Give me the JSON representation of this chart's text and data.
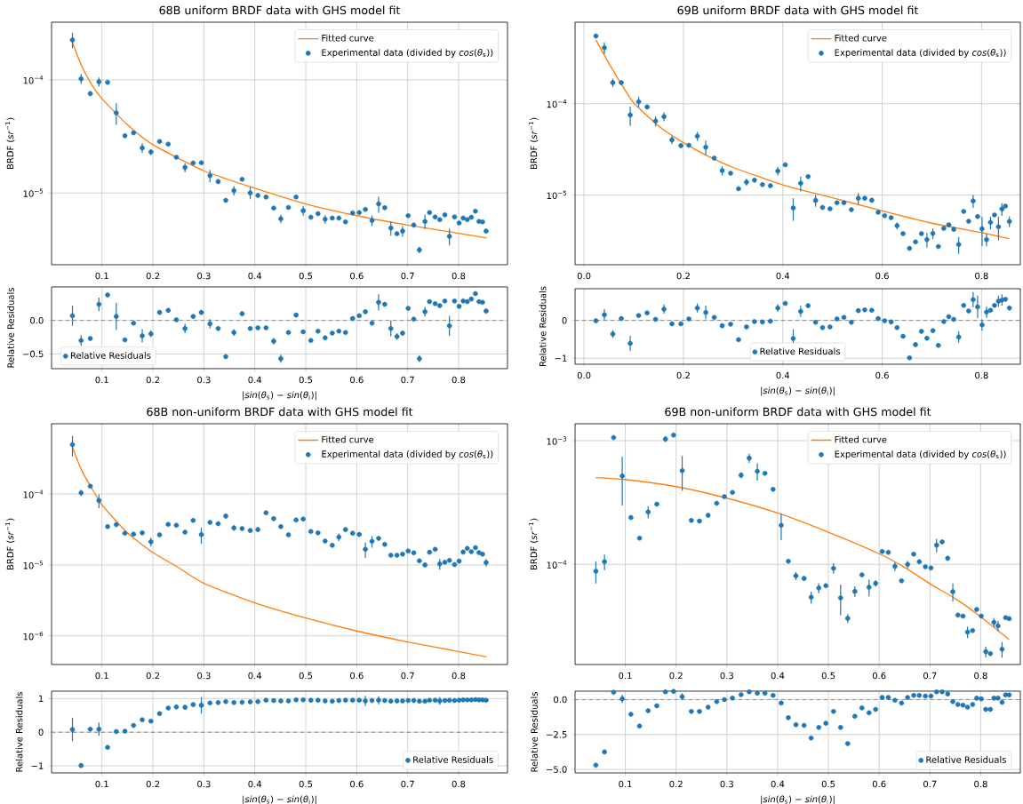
{
  "chart_data": [
    {
      "type": "scatter",
      "title": "68B uniform BRDF data with GHS model fit",
      "ylabel": "BRDF (*sr*$^{−1}$)",
      "log": "y",
      "grid": true,
      "legend": "top right",
      "marker": "circle",
      "xlim": [
        0.001,
        0.896
      ],
      "ylim": [
        2.32e-06,
        0.000323
      ],
      "xticks": [
        0.1,
        0.2,
        0.3,
        0.4,
        0.5,
        0.6,
        0.7,
        0.8
      ],
      "yticks": [
        {
          "value": 1e-05,
          "label": "10$^{−5}$"
        },
        {
          "value": 0.0001,
          "label": "10$^{−4}$"
        }
      ],
      "series": [
        {
          "name": "Fitted curve",
          "type": "line",
          "marker": "none",
          "color": "#ff7f0e",
          "x": [
            0.042,
            0.06,
            0.08,
            0.1,
            0.15,
            0.2,
            0.3,
            0.4,
            0.5,
            0.6,
            0.7,
            0.8,
            0.855
          ],
          "values": [
            0.000214,
            0.000133,
            9e-05,
            6.8e-05,
            4e-05,
            2.67e-05,
            1.57e-05,
            1.1e-05,
            8e-06,
            6.3e-06,
            5.2e-06,
            4.4e-06,
            4e-06
          ]
        },
        {
          "name": "Experimental data (divided by *cos*(*θ*$_{s}$))",
          "type": "scatter",
          "color": "#1f77b4",
          "x": [
            0.042,
            0.059,
            0.077,
            0.094,
            0.111,
            0.128,
            0.145,
            0.162,
            0.179,
            0.196,
            0.213,
            0.23,
            0.246,
            0.263,
            0.279,
            0.295,
            0.312,
            0.328,
            0.343,
            0.359,
            0.375,
            0.391,
            0.406,
            0.422,
            0.437,
            0.451,
            0.466,
            0.481,
            0.495,
            0.51,
            0.524,
            0.538,
            0.552,
            0.565,
            0.578,
            0.592,
            0.605,
            0.617,
            0.63,
            0.643,
            0.655,
            0.667,
            0.679,
            0.69,
            0.701,
            0.712,
            0.723,
            0.734,
            0.743,
            0.754,
            0.763,
            0.773,
            0.782,
            0.792,
            0.801,
            0.809,
            0.817,
            0.825,
            0.833,
            0.84,
            0.847,
            0.854
          ],
          "values": [
            0.000225,
            0.000102,
            7.55e-05,
            9.6e-05,
            9.5e-05,
            5.1e-05,
            3.2e-05,
            3.4e-05,
            2.5e-05,
            2.3e-05,
            2.85e-05,
            2.7e-05,
            2.07e-05,
            1.68e-05,
            1.84e-05,
            1.85e-05,
            1.42e-05,
            1.26e-05,
            8.6e-06,
            1.05e-05,
            1.32e-05,
            1e-05,
            9.5e-06,
            9.2e-06,
            7.35e-06,
            5.9e-06,
            7.45e-06,
            9.2e-06,
            6.97e-06,
            6.1e-06,
            6.56e-06,
            5.85e-06,
            6e-06,
            6e-06,
            5.55e-06,
            6.65e-06,
            6.7e-06,
            7.16e-06,
            5.7e-06,
            8e-06,
            7.4e-06,
            4.9e-06,
            4.36e-06,
            4.6e-06,
            6.3e-06,
            5.2e-06,
            3.14e-06,
            5.6e-06,
            6.7e-06,
            6.14e-06,
            5.8e-06,
            6.4e-06,
            4.13e-06,
            6.14e-06,
            5.43e-06,
            6e-06,
            5.8e-06,
            6.1e-06,
            6.9e-06,
            5.6e-06,
            5.55e-06,
            4.6e-06
          ],
          "errors": [
            3.5e-05,
            1e-05,
            null,
            9e-06,
            null,
            1.1e-05,
            null,
            null,
            2.5e-06,
            1.5e-06,
            null,
            null,
            null,
            1.5e-06,
            null,
            null,
            1.8e-06,
            null,
            null,
            1e-06,
            null,
            1.2e-06,
            null,
            null,
            null,
            5e-07,
            null,
            null,
            7e-07,
            null,
            null,
            5e-07,
            null,
            null,
            null,
            null,
            null,
            null,
            6e-07,
            1.3e-06,
            null,
            7e-07,
            null,
            5e-07,
            null,
            null,
            2e-07,
            8e-07,
            null,
            null,
            null,
            null,
            7e-07,
            null,
            null,
            null,
            null,
            null,
            null,
            null,
            null,
            null
          ]
        }
      ]
    },
    {
      "type": "scatter",
      "title": "69B uniform BRDF data with GHS model fit",
      "ylabel": "BRDF (*sr*$^{−1}$)",
      "log": "y",
      "grid": true,
      "legend": "top right",
      "marker": "circle",
      "xlim": [
        -0.018,
        0.878
      ],
      "ylim": [
        1.72e-06,
        0.00078
      ],
      "xticks": [
        {
          "value": 0,
          "label": "0.0"
        },
        0.2,
        0.4,
        0.6,
        0.8
      ],
      "yticks": [
        {
          "value": 1e-05,
          "label": "10$^{−5}$"
        },
        {
          "value": 0.0001,
          "label": "10$^{−4}$"
        }
      ],
      "series": [
        {
          "name": "Fitted curve",
          "type": "line",
          "marker": "none",
          "color": "#ff7f0e",
          "x": [
            0.024,
            0.05,
            0.075,
            0.1,
            0.15,
            0.2,
            0.25,
            0.3,
            0.4,
            0.5,
            0.6,
            0.7,
            0.8,
            0.856
          ],
          "values": [
            0.0005,
            0.000277,
            0.000164,
            0.000102,
            5.7e-05,
            3.73e-05,
            2.65e-05,
            2e-05,
            1.29e-05,
            9.3e-06,
            6.7e-06,
            4.9e-06,
            3.86e-06,
            3.32e-06
          ]
        },
        {
          "name": "Experimental data (divided by *cos*(*θ*$_{s}$))",
          "type": "scatter",
          "color": "#1f77b4",
          "x": [
            0.024,
            0.041,
            0.058,
            0.075,
            0.093,
            0.11,
            0.127,
            0.144,
            0.161,
            0.177,
            0.195,
            0.211,
            0.228,
            0.245,
            0.262,
            0.278,
            0.295,
            0.311,
            0.327,
            0.343,
            0.359,
            0.375,
            0.39,
            0.405,
            0.421,
            0.436,
            0.451,
            0.466,
            0.48,
            0.495,
            0.509,
            0.523,
            0.538,
            0.552,
            0.565,
            0.579,
            0.592,
            0.605,
            0.618,
            0.63,
            0.642,
            0.655,
            0.667,
            0.679,
            0.69,
            0.702,
            0.713,
            0.724,
            0.734,
            0.744,
            0.754,
            0.764,
            0.774,
            0.783,
            0.792,
            0.801,
            0.81,
            0.818,
            0.826,
            0.834,
            0.841,
            0.848,
            0.856
          ],
          "values": [
            0.00055,
            0.00041,
            0.00017,
            0.00017,
            7.5e-05,
            0.000105,
            9.2e-05,
            6.45e-05,
            7.2e-05,
            4e-05,
            3.47e-05,
            3.5e-05,
            4.4e-05,
            3.33e-05,
            2.53e-05,
            1.85e-05,
            1.73e-05,
            1.17e-05,
            1.38e-05,
            1.45e-05,
            1.3e-05,
            1.26e-05,
            1.83e-05,
            2.14e-05,
            7.2e-06,
            1.34e-05,
            1.59e-05,
            8.7e-06,
            7.3e-06,
            7.06e-06,
            8.2e-06,
            8.2e-06,
            6.9e-06,
            9.2e-06,
            9.2e-06,
            8.75e-06,
            6.45e-06,
            5.93e-06,
            5.65e-06,
            4.6e-06,
            3.77e-06,
            2.6e-06,
            3.06e-06,
            3.77e-06,
            3.24e-06,
            3.79e-06,
            2.72e-06,
            4.3e-06,
            4.7e-06,
            4.2e-06,
            2.86e-06,
            6.6e-06,
            5.15e-06,
            8.6e-06,
            5.8e-06,
            4.25e-06,
            3.24e-06,
            5e-06,
            6.04e-06,
            4.48e-06,
            7e-06,
            7.55e-06,
            5.12e-06
          ],
          "errors": [
            3e-05,
            6e-05,
            1.8e-05,
            null,
            1.8e-05,
            1.4e-05,
            null,
            8e-06,
            8e-06,
            4e-06,
            null,
            null,
            5e-06,
            6e-06,
            null,
            2.2e-06,
            null,
            null,
            1.2e-06,
            null,
            null,
            null,
            2e-06,
            null,
            2e-06,
            2.5e-06,
            null,
            1.3e-06,
            null,
            null,
            null,
            null,
            null,
            1.3e-06,
            null,
            null,
            null,
            null,
            null,
            4e-07,
            null,
            null,
            null,
            null,
            6e-07,
            5e-07,
            null,
            null,
            null,
            null,
            6e-07,
            null,
            null,
            1.4e-06,
            null,
            1.5e-06,
            5e-07,
            8e-07,
            null,
            1.3e-06,
            1.1e-06,
            null,
            7e-07
          ]
        }
      ]
    },
    {
      "type": "scatter",
      "xlabel": "|*sin*(*θ*$_{s}$) − *sin*(*θ*$_{i}$)|",
      "ylabel": "Relative Residuals",
      "grid": true,
      "legend": "bottom left",
      "marker": "circle",
      "xlim": [
        0.001,
        0.896
      ],
      "ylim": [
        -0.72,
        0.5
      ],
      "xticks": [
        0.1,
        0.2,
        0.3,
        0.4,
        0.5,
        0.6,
        0.7,
        0.8
      ],
      "yticks": [
        {
          "value": -0.5,
          "label": "−0.5"
        },
        {
          "value": 0,
          "label": "0.0"
        }
      ],
      "ref_lines": [
        {
          "axis": "y",
          "value": 0,
          "color": "#808080",
          "line_style": "dashed"
        }
      ],
      "series": [
        {
          "name": "Relative Residuals",
          "type": "scatter",
          "color": "#1f77b4",
          "x": [
            0.042,
            0.059,
            0.077,
            0.094,
            0.111,
            0.128,
            0.145,
            0.162,
            0.179,
            0.196,
            0.213,
            0.23,
            0.246,
            0.263,
            0.279,
            0.295,
            0.312,
            0.328,
            0.343,
            0.359,
            0.375,
            0.391,
            0.406,
            0.422,
            0.437,
            0.451,
            0.466,
            0.481,
            0.495,
            0.51,
            0.524,
            0.538,
            0.552,
            0.565,
            0.578,
            0.592,
            0.605,
            0.617,
            0.63,
            0.643,
            0.655,
            0.667,
            0.679,
            0.69,
            0.701,
            0.712,
            0.723,
            0.734,
            0.743,
            0.754,
            0.763,
            0.773,
            0.782,
            0.792,
            0.801,
            0.809,
            0.817,
            0.825,
            0.833,
            0.84,
            0.847,
            0.854
          ],
          "values": [
            0.07,
            -0.3,
            -0.27,
            0.24,
            0.38,
            0.06,
            -0.29,
            -0.04,
            -0.23,
            -0.2,
            0.12,
            0.15,
            0.01,
            -0.12,
            0.06,
            0.12,
            -0.05,
            -0.12,
            -0.54,
            -0.18,
            0.1,
            -0.12,
            -0.11,
            -0.11,
            -0.31,
            -0.57,
            -0.18,
            0.08,
            -0.17,
            -0.3,
            -0.16,
            -0.26,
            -0.19,
            -0.16,
            -0.18,
            0.03,
            0.07,
            0.13,
            -0.04,
            0.27,
            0.24,
            -0.12,
            -0.24,
            -0.19,
            0.18,
            0.02,
            -0.57,
            0.13,
            0.28,
            0.25,
            0.22,
            0.29,
            -0.08,
            0.29,
            0.21,
            0.29,
            0.28,
            0.32,
            0.4,
            0.28,
            0.27,
            0.14
          ],
          "errors": [
            0.15,
            0.08,
            null,
            0.1,
            null,
            0.2,
            null,
            null,
            0.1,
            0.05,
            null,
            null,
            null,
            0.07,
            null,
            null,
            0.07,
            null,
            null,
            0.05,
            null,
            null,
            null,
            null,
            0.05,
            0.06,
            null,
            null,
            null,
            null,
            null,
            null,
            null,
            null,
            null,
            null,
            null,
            null,
            null,
            0.12,
            null,
            0.12,
            0.05,
            0.04,
            null,
            null,
            0.05,
            0.07,
            null,
            null,
            null,
            null,
            0.15,
            null,
            null,
            null,
            null,
            null,
            null,
            null,
            null,
            null
          ]
        }
      ]
    },
    {
      "type": "scatter",
      "xlabel": "|*sin*(*θ*$_{s}$) − *sin*(*θ*$_{i}$)|",
      "ylabel": "Relative Residuals",
      "grid": true,
      "legend": "bottom",
      "marker": "circle",
      "xlim": [
        -0.018,
        0.878
      ],
      "ylim": [
        -1.16,
        0.84
      ],
      "xticks": [
        {
          "value": 0,
          "label": "0.0"
        },
        0.2,
        0.4,
        0.6,
        0.8
      ],
      "yticks": [
        {
          "value": -1,
          "label": "−1"
        },
        0
      ],
      "ref_lines": [
        {
          "axis": "y",
          "value": 0,
          "color": "#808080",
          "line_style": "dashed"
        }
      ],
      "series": [
        {
          "name": "Relative Residuals",
          "type": "scatter",
          "color": "#1f77b4",
          "x": [
            0.024,
            0.041,
            0.058,
            0.075,
            0.093,
            0.11,
            0.127,
            0.144,
            0.161,
            0.177,
            0.195,
            0.211,
            0.228,
            0.245,
            0.262,
            0.278,
            0.295,
            0.311,
            0.327,
            0.343,
            0.359,
            0.375,
            0.39,
            0.405,
            0.421,
            0.436,
            0.451,
            0.466,
            0.48,
            0.495,
            0.509,
            0.523,
            0.538,
            0.552,
            0.565,
            0.579,
            0.592,
            0.605,
            0.618,
            0.63,
            0.642,
            0.655,
            0.667,
            0.679,
            0.69,
            0.702,
            0.713,
            0.724,
            0.734,
            0.744,
            0.754,
            0.764,
            0.774,
            0.783,
            0.792,
            0.801,
            0.81,
            0.818,
            0.826,
            0.834,
            0.841,
            0.848,
            0.856
          ],
          "values": [
            -0.01,
            0.15,
            -0.36,
            0.05,
            -0.61,
            0.13,
            0.2,
            0.03,
            0.3,
            -0.09,
            -0.09,
            0.04,
            0.33,
            0.21,
            0.08,
            -0.14,
            -0.1,
            -0.51,
            -0.17,
            -0.03,
            -0.04,
            -0.02,
            0.33,
            0.45,
            -0.48,
            0.24,
            0.39,
            -0.05,
            -0.19,
            -0.17,
            0.04,
            0.08,
            -0.05,
            0.26,
            0.28,
            0.27,
            0.05,
            -0.01,
            -0.04,
            -0.19,
            -0.42,
            -0.99,
            -0.64,
            -0.29,
            -0.47,
            -0.27,
            -0.66,
            -0.03,
            0.1,
            0.03,
            -0.44,
            0.4,
            0.25,
            0.55,
            0.36,
            -0.12,
            0.22,
            0.27,
            0.4,
            0.51,
            0.54,
            0.56,
            0.33
          ],
          "errors": [
            null,
            0.15,
            0.1,
            null,
            0.2,
            null,
            null,
            null,
            0.12,
            null,
            null,
            null,
            0.12,
            0.18,
            null,
            null,
            null,
            null,
            null,
            null,
            null,
            null,
            0.1,
            null,
            0.25,
            0.15,
            null,
            null,
            null,
            null,
            null,
            null,
            null,
            null,
            null,
            null,
            null,
            null,
            null,
            null,
            null,
            null,
            null,
            null,
            null,
            null,
            null,
            null,
            null,
            null,
            0.15,
            null,
            null,
            0.2,
            0.3,
            0.15,
            0.15,
            null,
            null,
            0.15,
            0.15,
            null,
            null
          ]
        }
      ]
    },
    {
      "type": "scatter",
      "title": "68B non-uniform BRDF data with GHS model fit",
      "ylabel": "BRDF (*sr*$^{−1}$)",
      "log": "y",
      "grid": true,
      "legend": "top right",
      "marker": "circle",
      "xlim": [
        0.001,
        0.896
      ],
      "ylim": [
        3.94e-07,
        0.00098
      ],
      "xticks": [
        0.1,
        0.2,
        0.3,
        0.4,
        0.5,
        0.6,
        0.7,
        0.8
      ],
      "yticks": [
        {
          "value": 1e-06,
          "label": "10$^{−6}$"
        },
        {
          "value": 1e-05,
          "label": "10$^{−5}$"
        },
        {
          "value": 0.0001,
          "label": "10$^{−4}$"
        }
      ],
      "series": [
        {
          "name": "Fitted curve",
          "type": "line",
          "marker": "none",
          "color": "#ff7f0e",
          "x": [
            0.042,
            0.06,
            0.08,
            0.1,
            0.15,
            0.2,
            0.25,
            0.3,
            0.4,
            0.5,
            0.6,
            0.7,
            0.8,
            0.855
          ],
          "values": [
            0.000456,
            0.000216,
            0.00012,
            7.03e-05,
            2.83e-05,
            1.49e-05,
            9.2e-06,
            5.5e-06,
            2.91e-06,
            1.78e-06,
            1.17e-06,
            8.2e-07,
            6e-07,
            5.05e-07
          ]
        },
        {
          "name": "Experimental data (divided by *cos*(*θ*$_{s}$))",
          "type": "scatter",
          "color": "#1f77b4",
          "x": [
            0.042,
            0.059,
            0.077,
            0.094,
            0.111,
            0.128,
            0.145,
            0.162,
            0.179,
            0.196,
            0.213,
            0.23,
            0.246,
            0.263,
            0.279,
            0.295,
            0.312,
            0.328,
            0.343,
            0.359,
            0.375,
            0.391,
            0.406,
            0.422,
            0.437,
            0.451,
            0.466,
            0.481,
            0.495,
            0.51,
            0.524,
            0.538,
            0.552,
            0.565,
            0.578,
            0.592,
            0.605,
            0.617,
            0.63,
            0.643,
            0.655,
            0.667,
            0.679,
            0.69,
            0.701,
            0.712,
            0.723,
            0.734,
            0.743,
            0.754,
            0.763,
            0.773,
            0.782,
            0.792,
            0.801,
            0.809,
            0.817,
            0.825,
            0.833,
            0.84,
            0.847,
            0.854
          ],
          "values": [
            0.000497,
            0.000104,
            0.000129,
            8.1e-05,
            3.47e-05,
            3.7e-05,
            2.8e-05,
            2.72e-05,
            2.83e-05,
            2.12e-05,
            2.66e-05,
            3.74e-05,
            3.62e-05,
            2.9e-05,
            4.26e-05,
            2.68e-05,
            3.99e-05,
            3.82e-05,
            4.89e-05,
            3.33e-05,
            3.26e-05,
            3.06e-05,
            3.15e-05,
            5.44e-05,
            4.49e-05,
            3.47e-05,
            2.66e-05,
            4.3e-05,
            4.44e-05,
            2.96e-05,
            2.83e-05,
            2.17e-05,
            1.89e-05,
            2.47e-05,
            3.15e-05,
            2.8e-05,
            2.69e-05,
            1.66e-05,
            2.15e-05,
            2.37e-05,
            1.95e-05,
            1.37e-05,
            1.37e-05,
            1.42e-05,
            1.57e-05,
            1.48e-05,
            1.14e-05,
            1e-05,
            1.51e-05,
            1.66e-05,
            1.03e-05,
            1.09e-05,
            1.16e-05,
            1.01e-05,
            1.13e-05,
            1.52e-05,
            1.71e-05,
            1.54e-05,
            1.75e-05,
            1.49e-05,
            1.42e-05,
            1.08e-05
          ],
          "errors": [
            0.00016,
            1e-05,
            null,
            1.8e-05,
            null,
            null,
            null,
            null,
            null,
            3e-06,
            null,
            null,
            null,
            null,
            null,
            7e-06,
            null,
            null,
            4e-06,
            3e-06,
            null,
            null,
            null,
            null,
            null,
            null,
            null,
            null,
            null,
            null,
            null,
            null,
            null,
            3e-06,
            null,
            null,
            null,
            4e-06,
            4e-06,
            null,
            null,
            null,
            null,
            null,
            null,
            null,
            null,
            null,
            null,
            null,
            1.8e-06,
            null,
            null,
            null,
            null,
            null,
            null,
            null,
            null,
            null,
            null,
            1.3e-06
          ]
        }
      ]
    },
    {
      "type": "scatter",
      "title": "69B non-uniform BRDF data with GHS model fit",
      "ylabel": "BRDF (*sr*$^{−1}$)",
      "log": "y",
      "grid": true,
      "legend": "top right",
      "marker": "circle",
      "xlim": [
        0.001,
        0.878
      ],
      "ylim": [
        1.55e-05,
        0.00137
      ],
      "xticks": [
        0.1,
        0.2,
        0.3,
        0.4,
        0.5,
        0.6,
        0.7,
        0.8
      ],
      "yticks": [
        {
          "value": 0.0001,
          "label": "10$^{−4}$"
        },
        {
          "value": 0.001,
          "label": "10$^{−3}$"
        }
      ],
      "series": [
        {
          "name": "Fitted curve",
          "type": "line",
          "marker": "none",
          "color": "#ff7f0e",
          "x": [
            0.042,
            0.1,
            0.2,
            0.3,
            0.4,
            0.5,
            0.6,
            0.65,
            0.7,
            0.75,
            0.8,
            0.856
          ],
          "values": [
            0.000503,
            0.000485,
            0.000425,
            0.000343,
            0.00026,
            0.000182,
            0.000122,
            9.46e-05,
            6.97e-05,
            5.28e-05,
            3.77e-05,
            2.46e-05
          ]
        },
        {
          "name": "Experimental data (divided by *cos*(*θ*$_{s}$))",
          "type": "scatter",
          "color": "#1f77b4",
          "x": [
            0.042,
            0.059,
            0.077,
            0.094,
            0.111,
            0.128,
            0.145,
            0.162,
            0.179,
            0.195,
            0.212,
            0.23,
            0.246,
            0.263,
            0.28,
            0.295,
            0.311,
            0.328,
            0.344,
            0.36,
            0.375,
            0.391,
            0.407,
            0.421,
            0.436,
            0.452,
            0.466,
            0.481,
            0.495,
            0.51,
            0.524,
            0.538,
            0.552,
            0.566,
            0.58,
            0.593,
            0.606,
            0.618,
            0.631,
            0.644,
            0.656,
            0.668,
            0.679,
            0.691,
            0.702,
            0.713,
            0.724,
            0.735,
            0.745,
            0.755,
            0.765,
            0.774,
            0.784,
            0.792,
            0.801,
            0.81,
            0.819,
            0.826,
            0.834,
            0.842,
            0.849,
            0.856
          ],
          "values": [
            8.8e-05,
            0.000105,
            0.00106,
            0.000519,
            0.000239,
            0.000163,
            0.000265,
            0.000307,
            0.00103,
            0.00111,
            0.000573,
            0.000227,
            0.000224,
            0.000249,
            0.000312,
            0.000353,
            0.000382,
            0.000526,
            0.000723,
            0.000566,
            0.000545,
            0.000404,
            0.000207,
            0.000106,
            8.07e-05,
            7.69e-05,
            5.42e-05,
            6.44e-05,
            6.72e-05,
            9.29e-05,
            5.36e-05,
            3.66e-05,
            6.05e-05,
            8.22e-05,
            6.52e-05,
            7.02e-05,
            0.000127,
            0.000125,
            9.64e-05,
            7.36e-05,
            0.0001,
            0.000121,
            0.000105,
            9.57e-05,
            9.35e-05,
            0.000143,
            0.000152,
            0.000112,
            6.01e-05,
            3.89e-05,
            3.82e-05,
            2.83e-05,
            2.92e-05,
            4.32e-05,
            3.82e-05,
            1.97e-05,
            1.9e-05,
            3.4e-05,
            3.18e-05,
            2.06e-05,
            3.71e-05,
            3.64e-05
          ],
          "errors": [
            1.8e-05,
            1.5e-05,
            null,
            0.00022,
            null,
            null,
            3e-05,
            null,
            6e-05,
            null,
            0.00018,
            null,
            null,
            null,
            null,
            null,
            null,
            3e-05,
            6e-05,
            9e-05,
            null,
            null,
            5e-05,
            null,
            6e-06,
            null,
            6e-06,
            6e-06,
            null,
            9e-06,
            1.5e-05,
            3e-06,
            6e-06,
            null,
            1e-05,
            4e-06,
            null,
            null,
            8e-06,
            null,
            7e-06,
            null,
            null,
            null,
            null,
            1.8e-05,
            null,
            null,
            1e-05,
            null,
            null,
            3e-06,
            null,
            null,
            null,
            2e-06,
            null,
            3e-06,
            3e-06,
            3e-06,
            null,
            null
          ]
        }
      ]
    },
    {
      "type": "scatter",
      "xlabel": "|*sin*(*θ*$_{s}$) − *sin*(*θ*$_{i}$)|",
      "ylabel": "Relative Residuals",
      "grid": true,
      "legend": "bottom right",
      "marker": "circle",
      "xlim": [
        0.001,
        0.896
      ],
      "ylim": [
        -1.21,
        1.22
      ],
      "xticks": [
        0.1,
        0.2,
        0.3,
        0.4,
        0.5,
        0.6,
        0.7,
        0.8
      ],
      "yticks": [
        {
          "value": -1,
          "label": "−1"
        },
        0,
        1
      ],
      "ref_lines": [
        {
          "axis": "y",
          "value": 0,
          "color": "#808080",
          "line_style": "dashed"
        }
      ],
      "series": [
        {
          "name": "Relative Residuals",
          "type": "scatter",
          "color": "#1f77b4",
          "x": [
            0.042,
            0.059,
            0.077,
            0.094,
            0.111,
            0.128,
            0.145,
            0.162,
            0.179,
            0.196,
            0.213,
            0.23,
            0.246,
            0.263,
            0.279,
            0.295,
            0.312,
            0.328,
            0.343,
            0.359,
            0.375,
            0.391,
            0.406,
            0.422,
            0.437,
            0.451,
            0.466,
            0.481,
            0.495,
            0.51,
            0.524,
            0.538,
            0.552,
            0.565,
            0.578,
            0.592,
            0.605,
            0.617,
            0.63,
            0.643,
            0.655,
            0.667,
            0.679,
            0.69,
            0.701,
            0.712,
            0.723,
            0.734,
            0.743,
            0.754,
            0.763,
            0.773,
            0.782,
            0.792,
            0.801,
            0.809,
            0.817,
            0.825,
            0.833,
            0.84,
            0.847,
            0.854
          ],
          "values": [
            0.08,
            -0.99,
            0.09,
            0.09,
            -0.45,
            0.02,
            0.03,
            0.2,
            0.37,
            0.33,
            0.55,
            0.72,
            0.75,
            0.74,
            0.82,
            0.8,
            0.87,
            0.88,
            0.91,
            0.88,
            0.89,
            0.9,
            0.91,
            0.95,
            0.94,
            0.93,
            0.93,
            0.96,
            0.96,
            0.95,
            0.95,
            0.93,
            0.92,
            0.94,
            0.95,
            0.95,
            0.95,
            0.93,
            0.94,
            0.95,
            0.94,
            0.92,
            0.93,
            0.93,
            0.94,
            0.94,
            0.92,
            0.92,
            0.95,
            0.95,
            0.93,
            0.94,
            0.95,
            0.94,
            0.95,
            0.96,
            0.96,
            0.96,
            0.97,
            0.96,
            0.96,
            0.95
          ],
          "errors": [
            0.35,
            0.07,
            null,
            0.2,
            null,
            null,
            null,
            null,
            null,
            null,
            null,
            null,
            null,
            null,
            null,
            0.25,
            null,
            null,
            null,
            null,
            null,
            null,
            null,
            null,
            null,
            null,
            null,
            null,
            null,
            null,
            null,
            null,
            null,
            null,
            null,
            null,
            null,
            0.15,
            null,
            0.12,
            null,
            null,
            null,
            null,
            null,
            null,
            null,
            null,
            null,
            null,
            0.12,
            null,
            null,
            null,
            null,
            null,
            null,
            null,
            null,
            null,
            null,
            null
          ]
        }
      ]
    },
    {
      "type": "scatter",
      "xlabel": "|*sin*(*θ*$_{s}$) − *sin*(*θ*$_{i}$)|",
      "ylabel": "Relative Residuals",
      "grid": true,
      "legend": "bottom right",
      "marker": "circle",
      "xlim": [
        0.001,
        0.878
      ],
      "ylim": [
        -5.25,
        0.6
      ],
      "xticks": [
        0.1,
        0.2,
        0.3,
        0.4,
        0.5,
        0.6,
        0.7,
        0.8
      ],
      "yticks": [
        {
          "value": -5,
          "label": "−5.0"
        },
        {
          "value": -2.5,
          "label": "−2.5"
        },
        {
          "value": 0,
          "label": "0.0"
        }
      ],
      "ref_lines": [
        {
          "axis": "y",
          "value": 0,
          "color": "#808080",
          "line_style": "dashed"
        }
      ],
      "series": [
        {
          "name": "Relative Residuals",
          "type": "scatter",
          "color": "#1f77b4",
          "x": [
            0.042,
            0.059,
            0.077,
            0.094,
            0.111,
            0.128,
            0.145,
            0.162,
            0.179,
            0.195,
            0.212,
            0.23,
            0.246,
            0.263,
            0.28,
            0.295,
            0.311,
            0.328,
            0.344,
            0.36,
            0.375,
            0.391,
            0.407,
            0.421,
            0.436,
            0.452,
            0.466,
            0.481,
            0.495,
            0.51,
            0.524,
            0.538,
            0.552,
            0.566,
            0.58,
            0.593,
            0.606,
            0.618,
            0.631,
            0.644,
            0.656,
            0.668,
            0.679,
            0.691,
            0.702,
            0.713,
            0.724,
            0.735,
            0.745,
            0.755,
            0.765,
            0.774,
            0.784,
            0.792,
            0.801,
            0.81,
            0.819,
            0.826,
            0.834,
            0.842,
            0.849,
            0.856
          ],
          "values": [
            -4.7,
            -3.75,
            0.52,
            0.05,
            -1.05,
            -1.9,
            -0.8,
            -0.45,
            0.55,
            0.58,
            0.2,
            -0.85,
            -0.85,
            -0.55,
            -0.15,
            0.0,
            0.1,
            0.35,
            0.55,
            0.45,
            0.45,
            0.3,
            -0.25,
            -1.3,
            -1.8,
            -1.85,
            -2.75,
            -2.0,
            -1.7,
            -0.85,
            -2.0,
            -3.15,
            -1.2,
            -0.6,
            -0.95,
            -0.7,
            0.15,
            0.15,
            -0.05,
            -0.25,
            0.15,
            0.3,
            0.3,
            0.25,
            0.25,
            0.55,
            0.55,
            0.4,
            -0.15,
            -0.35,
            -0.4,
            -0.55,
            -0.35,
            0.1,
            0.05,
            -0.7,
            -0.7,
            0.1,
            0.1,
            -0.2,
            0.33,
            0.33
          ],
          "errors": [
            null,
            null,
            null,
            0.3,
            null,
            null,
            null,
            null,
            null,
            null,
            0.25,
            null,
            null,
            null,
            null,
            null,
            null,
            null,
            null,
            null,
            null,
            null,
            null,
            null,
            null,
            null,
            null,
            null,
            null,
            null,
            null,
            null,
            null,
            null,
            null,
            null,
            null,
            null,
            null,
            null,
            null,
            null,
            null,
            null,
            null,
            null,
            null,
            null,
            null,
            null,
            null,
            null,
            null,
            null,
            null,
            null,
            null,
            null,
            null,
            null,
            null,
            null
          ]
        }
      ]
    }
  ]
}
